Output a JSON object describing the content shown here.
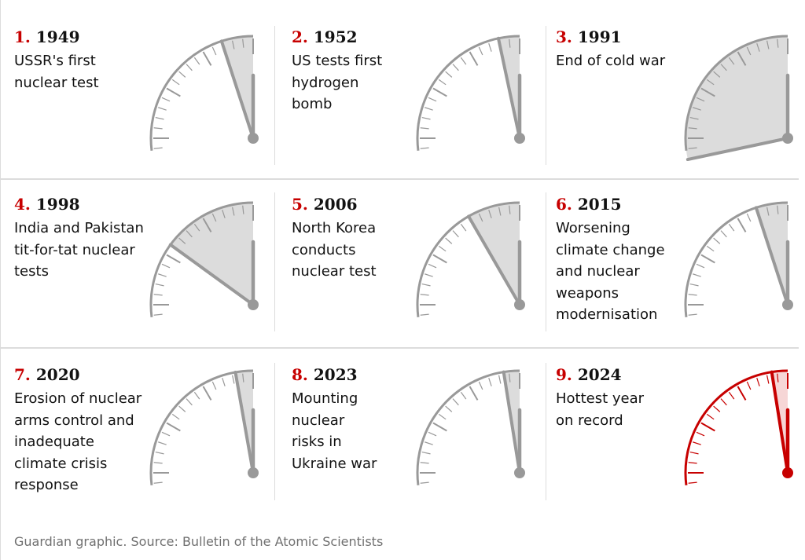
{
  "panels": [
    {
      "number": "1.",
      "year": "1949",
      "description": "USSR's first\nnuclear test",
      "seconds_to_midnight": 180
    },
    {
      "number": "2.",
      "year": "1952",
      "description": "US tests first\nhydrogen\nbomb",
      "seconds_to_midnight": 120
    },
    {
      "number": "3.",
      "year": "1991",
      "description": "End of cold war",
      "seconds_to_midnight": 1020
    },
    {
      "number": "4.",
      "year": "1998",
      "description": "India and Pakistan\ntit-for-tat nuclear\ntests",
      "seconds_to_midnight": 540
    },
    {
      "number": "5.",
      "year": "2006",
      "description": "North Korea\nconducts\nnuclear test",
      "seconds_to_midnight": 300
    },
    {
      "number": "6.",
      "year": "2015",
      "description": "Worsening\nclimate change\nand nuclear\nweapons\nmodernisation",
      "seconds_to_midnight": 180
    },
    {
      "number": "7.",
      "year": "2020",
      "description": "Erosion of nuclear\narms control and\ninadequate\nclimate crisis\nresponse",
      "seconds_to_midnight": 100
    },
    {
      "number": "8.",
      "year": "2023",
      "description": "Mounting\nnuclear\nrisks in\nUkraine war",
      "seconds_to_midnight": 90
    },
    {
      "number": "9.",
      "year": "2024",
      "description": "Hottest year\non record",
      "seconds_to_midnight": 90
    }
  ],
  "colors": {
    "accent_red": "#c70000",
    "dial_grey": "#999999",
    "shade_grey": "#dcdcdc",
    "shade_red": "#f6d6d6"
  },
  "highlight_panel": 9,
  "footer": {
    "source": "Guardian graphic. Source: Bulletin of the Atomic Scientists"
  }
}
